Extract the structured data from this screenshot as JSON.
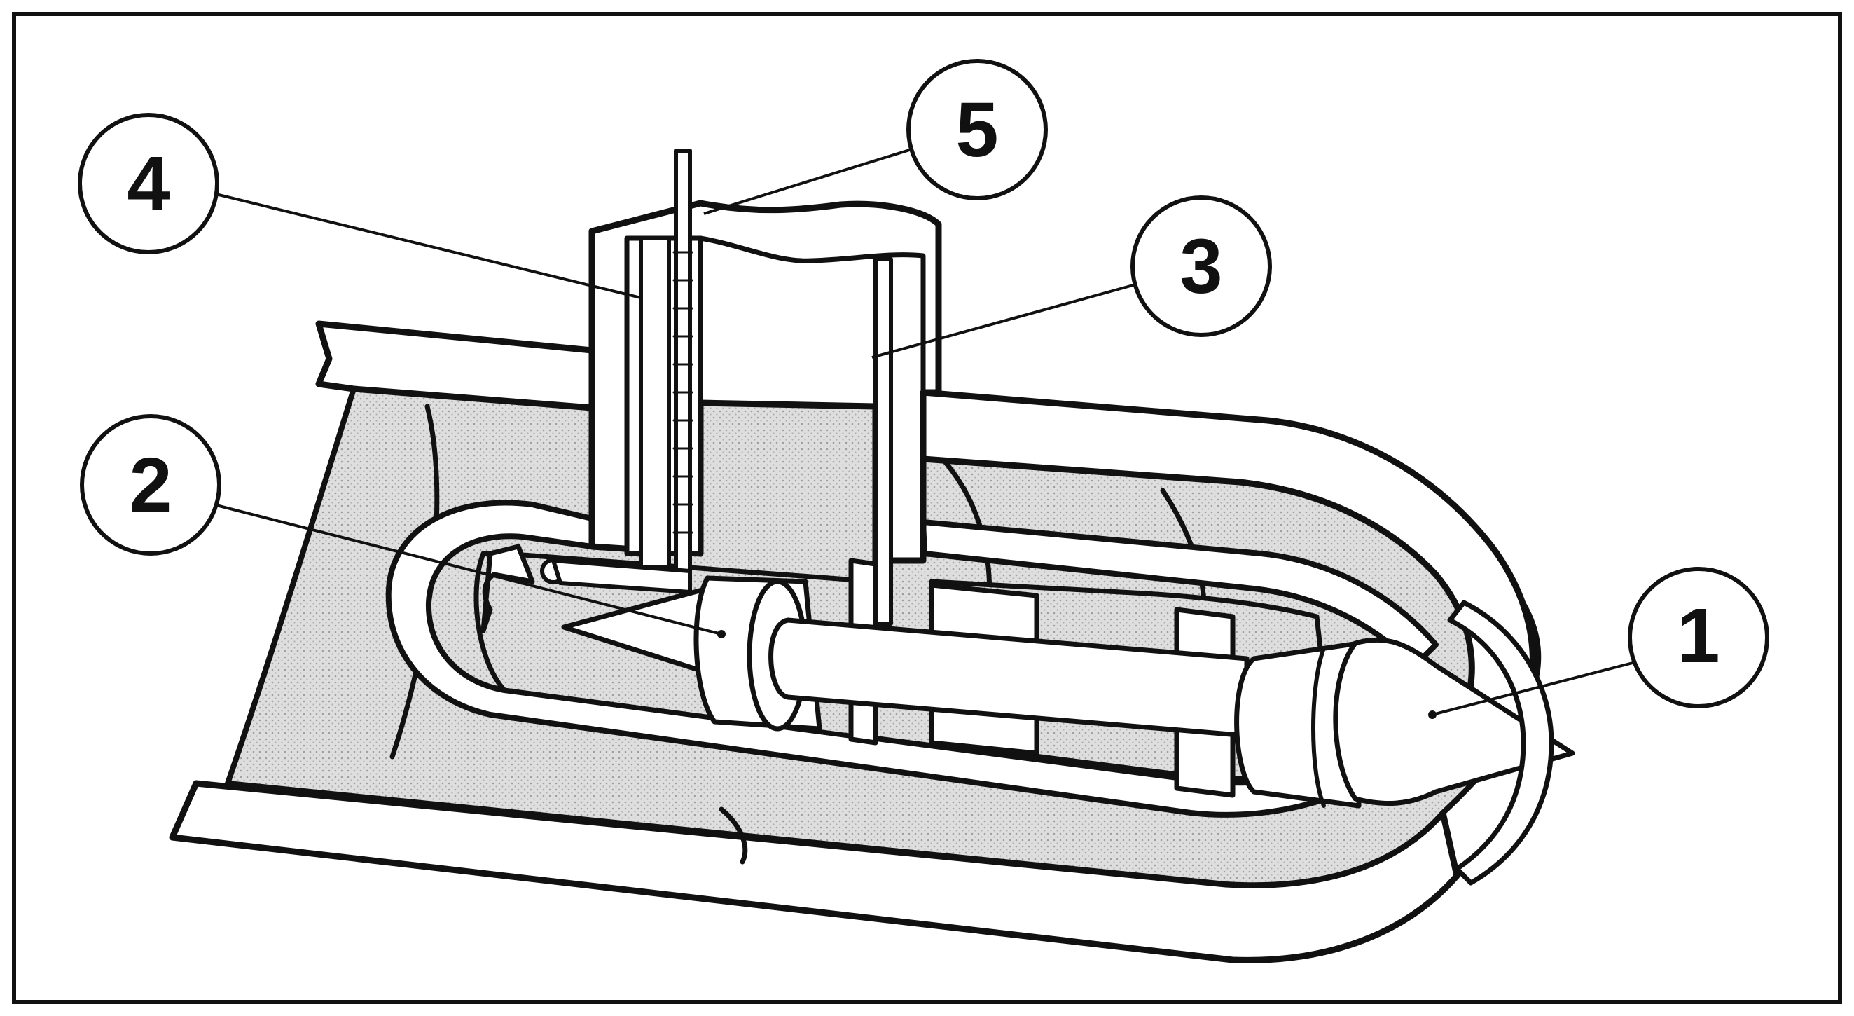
{
  "callouts": [
    {
      "id": "1",
      "label": "1"
    },
    {
      "id": "2",
      "label": "2"
    },
    {
      "id": "3",
      "label": "3"
    },
    {
      "id": "4",
      "label": "4"
    },
    {
      "id": "5",
      "label": "5"
    }
  ],
  "colors": {
    "ink": "#111111",
    "background": "#ffffff",
    "hatch_fill": "#dcdcdc",
    "hatch_dot": "#9a9a9a"
  }
}
